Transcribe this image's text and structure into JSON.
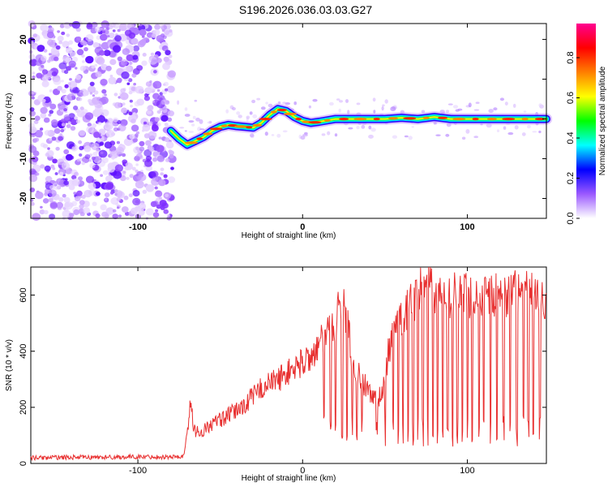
{
  "title": "S196.2026.036.03.03.G27",
  "chart_data": [
    {
      "type": "heatmap",
      "xlabel": "Height of straight line (km)",
      "ylabel": "Frequency (Hz)",
      "xlim": [
        -165,
        148
      ],
      "ylim": [
        -25,
        24
      ],
      "xticks": [
        -100,
        0,
        100
      ],
      "yticks": [
        -20,
        -10,
        0,
        10,
        20
      ],
      "noise_region_x": [
        -165,
        -79
      ],
      "signal_trace": {
        "x": [
          -80,
          -75,
          -70,
          -65,
          -60,
          -55,
          -50,
          -45,
          -40,
          -35,
          -30,
          -25,
          -20,
          -15,
          -10,
          -5,
          0,
          5,
          10,
          20,
          30,
          40,
          50,
          60,
          70,
          80,
          90,
          100,
          110,
          120,
          130,
          140,
          148
        ],
        "y": [
          -3,
          -5,
          -6.5,
          -5.5,
          -4.5,
          -3,
          -2,
          -1.5,
          -1.8,
          -2,
          -2.2,
          -1,
          1,
          2.5,
          2,
          0.5,
          -0.5,
          -1,
          -0.7,
          0,
          0,
          0,
          0,
          0.3,
          0,
          0.5,
          0,
          0,
          0,
          0,
          0,
          0,
          0
        ]
      },
      "colorbar": {
        "label": "Normalized spectral amplitude",
        "ticks": [
          "0.0",
          "0.2",
          "0.4",
          "0.6",
          "0.8"
        ],
        "tick_values": [
          0,
          0.2,
          0.4,
          0.6,
          0.8
        ],
        "range": [
          0,
          0.97
        ],
        "colors": [
          "#ffffff",
          "#9b59ff",
          "#0000ff",
          "#00ffff",
          "#00ff00",
          "#ffff00",
          "#ff7f00",
          "#ff0000",
          "#ff0090"
        ]
      }
    },
    {
      "type": "line",
      "xlabel": "Height of straight line (km)",
      "ylabel": "SNR (10 * v/v)",
      "xlim": [
        -165,
        148
      ],
      "ylim": [
        0,
        700
      ],
      "xticks": [
        -100,
        0,
        100
      ],
      "yticks": [
        0,
        200,
        400,
        600
      ],
      "color": "#e83030",
      "series": {
        "x": [
          -165,
          -140,
          -120,
          -100,
          -80,
          -72,
          -68,
          -66,
          -62,
          -55,
          -45,
          -35,
          -25,
          -15,
          -5,
          0,
          5,
          10,
          15,
          20,
          22,
          25,
          27,
          30,
          35,
          40,
          45,
          48,
          52,
          55,
          60,
          65,
          70,
          75,
          80,
          85,
          90,
          100,
          110,
          120,
          130,
          140,
          148
        ],
        "y": [
          20,
          22,
          22,
          24,
          23,
          25,
          215,
          120,
          110,
          140,
          170,
          210,
          270,
          300,
          340,
          360,
          380,
          420,
          470,
          500,
          570,
          560,
          520,
          380,
          300,
          260,
          230,
          250,
          390,
          460,
          530,
          560,
          600,
          680,
          620,
          580,
          600,
          600,
          590,
          600,
          610,
          600,
          590
        ]
      },
      "dropouts_x": [
        13,
        17,
        20,
        24,
        27,
        30,
        33,
        36,
        45,
        50,
        55,
        58,
        61,
        64,
        67,
        70,
        73,
        76,
        79,
        82,
        85,
        88,
        91,
        94,
        97,
        100,
        103,
        107,
        110,
        114,
        118,
        122,
        126,
        130,
        134,
        137,
        140,
        144
      ]
    }
  ]
}
